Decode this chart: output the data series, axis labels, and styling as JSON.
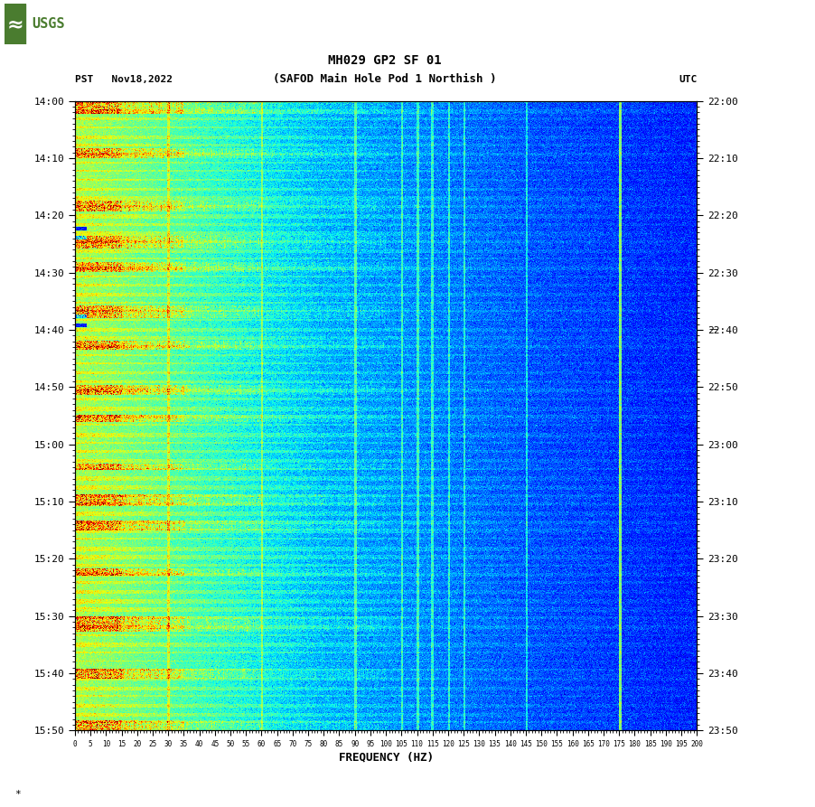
{
  "title_line1": "MH029 GP2 SF 01",
  "title_line2": "(SAFOD Main Hole Pod 1 Northish )",
  "left_label": "PST   Nov18,2022",
  "right_label": "UTC",
  "xlabel": "FREQUENCY (HZ)",
  "freq_min": 0,
  "freq_max": 200,
  "time_labels_left": [
    "14:00",
    "14:10",
    "14:20",
    "14:30",
    "14:40",
    "14:50",
    "15:00",
    "15:10",
    "15:20",
    "15:30",
    "15:40",
    "15:50"
  ],
  "time_labels_right": [
    "22:00",
    "22:10",
    "22:20",
    "22:30",
    "22:40",
    "22:50",
    "23:00",
    "23:10",
    "23:20",
    "23:30",
    "23:40",
    "23:50"
  ],
  "freq_ticks": [
    0,
    5,
    10,
    15,
    20,
    25,
    30,
    35,
    40,
    45,
    50,
    55,
    60,
    65,
    70,
    75,
    80,
    85,
    90,
    95,
    100,
    105,
    110,
    115,
    120,
    125,
    130,
    135,
    140,
    145,
    150,
    155,
    160,
    165,
    170,
    175,
    180,
    185,
    190,
    195,
    200
  ],
  "bg_color": "#ffffff",
  "colormap": "jet",
  "noise_seed": 42,
  "n_time": 720,
  "n_freq": 800,
  "vertical_line_freqs": [
    30,
    60,
    90,
    105,
    110,
    115,
    120,
    125,
    145,
    175
  ],
  "figure_width": 9.02,
  "figure_height": 8.93,
  "dpi": 100
}
